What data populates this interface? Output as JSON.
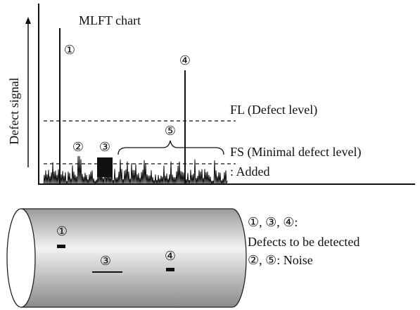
{
  "chart": {
    "title": "MLFT chart",
    "y_axis_label": "Defect signal",
    "markers": [
      "①",
      "②",
      "③",
      "④",
      "⑤"
    ],
    "fl_label": "FL (Defect level)",
    "fs_label": "FS (Minimal defect level)",
    "added_label": ": Added"
  },
  "pipe": {
    "markers": [
      "①",
      "③",
      "④"
    ]
  },
  "legend": {
    "line1": "①, ③, ④:",
    "line2": "Defects to be detected",
    "line3": "②, ⑤: Noise"
  }
}
